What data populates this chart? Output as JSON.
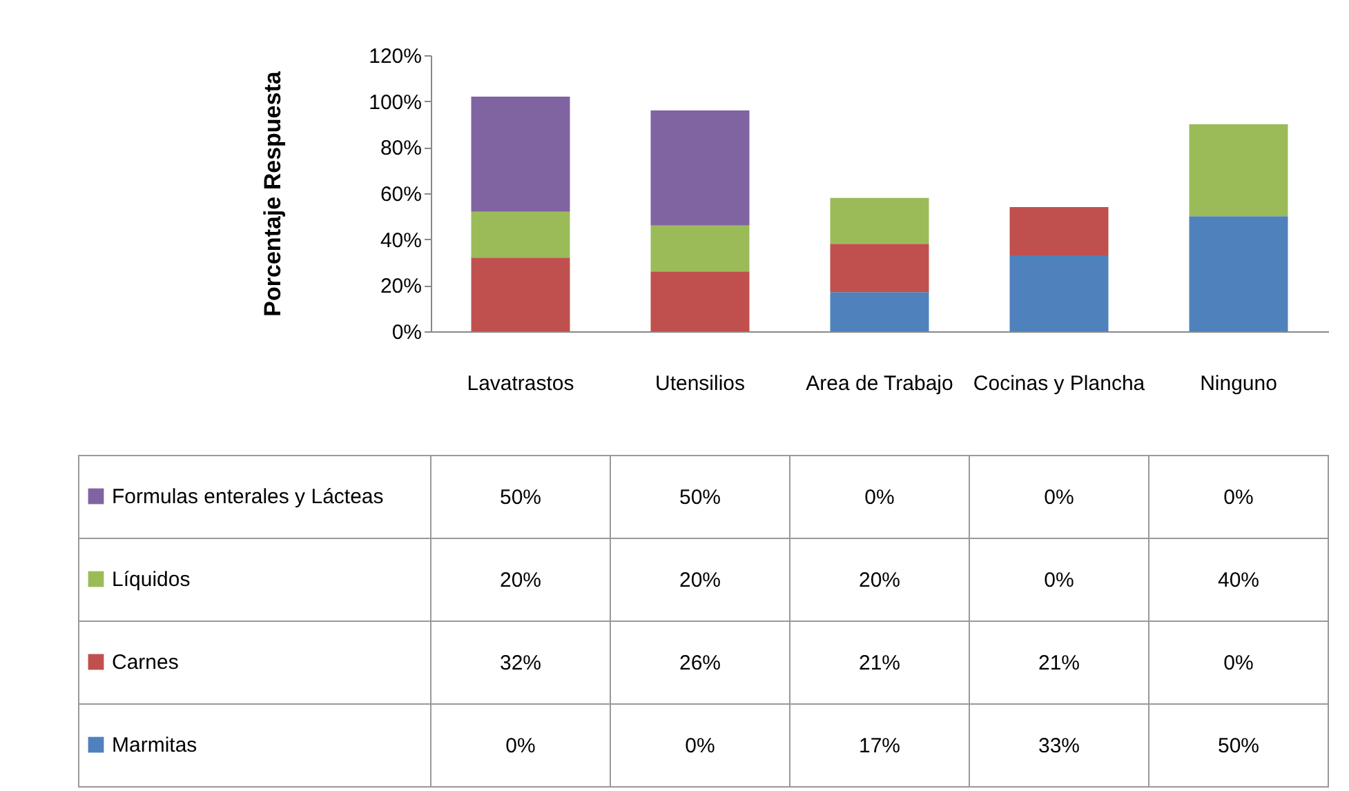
{
  "chart_data": {
    "type": "bar",
    "stacked": true,
    "ylabel": "Porcentaje Respuesta",
    "categories": [
      "Lavatrastos",
      "Utensilios",
      "Area de Trabajo",
      "Cocinas y Plancha",
      "Ninguno"
    ],
    "ylim": [
      0,
      120
    ],
    "yticks": [
      {
        "value": 0,
        "label": "0%"
      },
      {
        "value": 20,
        "label": "20%"
      },
      {
        "value": 40,
        "label": "40%"
      },
      {
        "value": 60,
        "label": "60%"
      },
      {
        "value": 80,
        "label": "80%"
      },
      {
        "value": 100,
        "label": "100%"
      },
      {
        "value": 120,
        "label": "120%"
      }
    ],
    "legend": "bottom left",
    "series": [
      {
        "name": "Marmitas",
        "color": "#4f81bd",
        "values": [
          0,
          0,
          17,
          33,
          50
        ],
        "value_labels": [
          "0%",
          "0%",
          "17%",
          "33%",
          "50%"
        ]
      },
      {
        "name": "Carnes",
        "color": "#c0504d",
        "values": [
          32,
          26,
          21,
          21,
          0
        ],
        "value_labels": [
          "32%",
          "26%",
          "21%",
          "21%",
          "0%"
        ]
      },
      {
        "name": "Líquidos",
        "color": "#9bbb59",
        "values": [
          20,
          20,
          20,
          0,
          40
        ],
        "value_labels": [
          "20%",
          "20%",
          "20%",
          "0%",
          "40%"
        ]
      },
      {
        "name": "Formulas enterales y Lácteas",
        "color": "#8064a2",
        "values": [
          50,
          50,
          0,
          0,
          0
        ],
        "value_labels": [
          "50%",
          "50%",
          "0%",
          "0%",
          "0%"
        ]
      }
    ]
  }
}
